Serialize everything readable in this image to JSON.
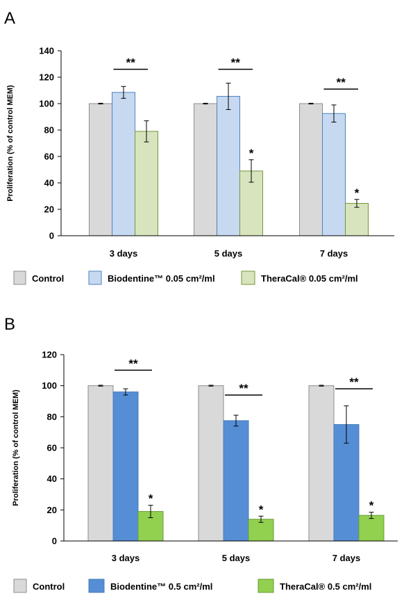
{
  "chart_data": [
    {
      "panel": "A",
      "type": "bar",
      "ylabel": "Proliferation (% of control MEM)",
      "ylim": [
        0,
        140
      ],
      "yticks": [
        0,
        20,
        40,
        60,
        80,
        100,
        120,
        140
      ],
      "categories": [
        "3 days",
        "5 days",
        "7 days"
      ],
      "series": [
        {
          "name": "Control",
          "values": [
            100,
            100,
            100
          ],
          "errors": [
            0.3,
            0.3,
            0.3
          ],
          "color": "#d9d9d9",
          "stroke": "#8c8c8c"
        },
        {
          "name": "Biodentine™ 0.05 cm²/ml",
          "values": [
            108.5,
            105.5,
            92.5
          ],
          "errors": [
            4.5,
            10,
            6.5
          ],
          "color": "#c6d9f1",
          "stroke": "#4f81bd"
        },
        {
          "name": "TheraCal® 0.05 cm²/ml",
          "values": [
            79,
            49,
            24.5
          ],
          "errors": [
            8,
            8.5,
            3
          ],
          "color": "#d7e4bd",
          "stroke": "#77933c"
        }
      ],
      "significance": [
        {
          "label": "**",
          "category": 0,
          "level": 126,
          "span": [
            1,
            2
          ]
        },
        {
          "label": "**",
          "category": 1,
          "level": 126,
          "span": [
            1,
            2
          ]
        },
        {
          "label": "*",
          "category": 1,
          "series": 2
        },
        {
          "label": "**",
          "category": 2,
          "level": 111,
          "span": [
            1,
            2
          ]
        },
        {
          "label": "*",
          "category": 2,
          "series": 2
        }
      ],
      "legend_position": "bottom"
    },
    {
      "panel": "B",
      "type": "bar",
      "ylabel": "Proliferation (% of control MEM)",
      "ylim": [
        0,
        120
      ],
      "yticks": [
        0,
        20,
        40,
        60,
        80,
        100,
        120
      ],
      "categories": [
        "3 days",
        "5 days",
        "7 days"
      ],
      "series": [
        {
          "name": "Control",
          "values": [
            100,
            100,
            100
          ],
          "errors": [
            0.3,
            0.3,
            0.3
          ],
          "color": "#d9d9d9",
          "stroke": "#8c8c8c"
        },
        {
          "name": "Biodentine™ 0.5 cm²/ml",
          "values": [
            96,
            77.5,
            75
          ],
          "errors": [
            2,
            3.5,
            12
          ],
          "color": "#558ed5",
          "stroke": "#4a7ebb"
        },
        {
          "name": "TheraCal® 0.5 cm²/ml",
          "values": [
            19,
            14,
            16.5
          ],
          "errors": [
            4,
            2,
            2
          ],
          "color": "#92d050",
          "stroke": "#6a9a36"
        }
      ],
      "significance": [
        {
          "label": "**",
          "category": 0,
          "level": 110,
          "span": [
            1,
            2
          ]
        },
        {
          "label": "*",
          "category": 0,
          "series": 2
        },
        {
          "label": "**",
          "category": 1,
          "level": 94,
          "span": [
            1,
            2
          ]
        },
        {
          "label": "*",
          "category": 1,
          "series": 2
        },
        {
          "label": "**",
          "category": 2,
          "level": 98,
          "span": [
            1,
            2
          ]
        },
        {
          "label": "*",
          "category": 2,
          "series": 2
        }
      ],
      "legend_position": "bottom"
    }
  ]
}
